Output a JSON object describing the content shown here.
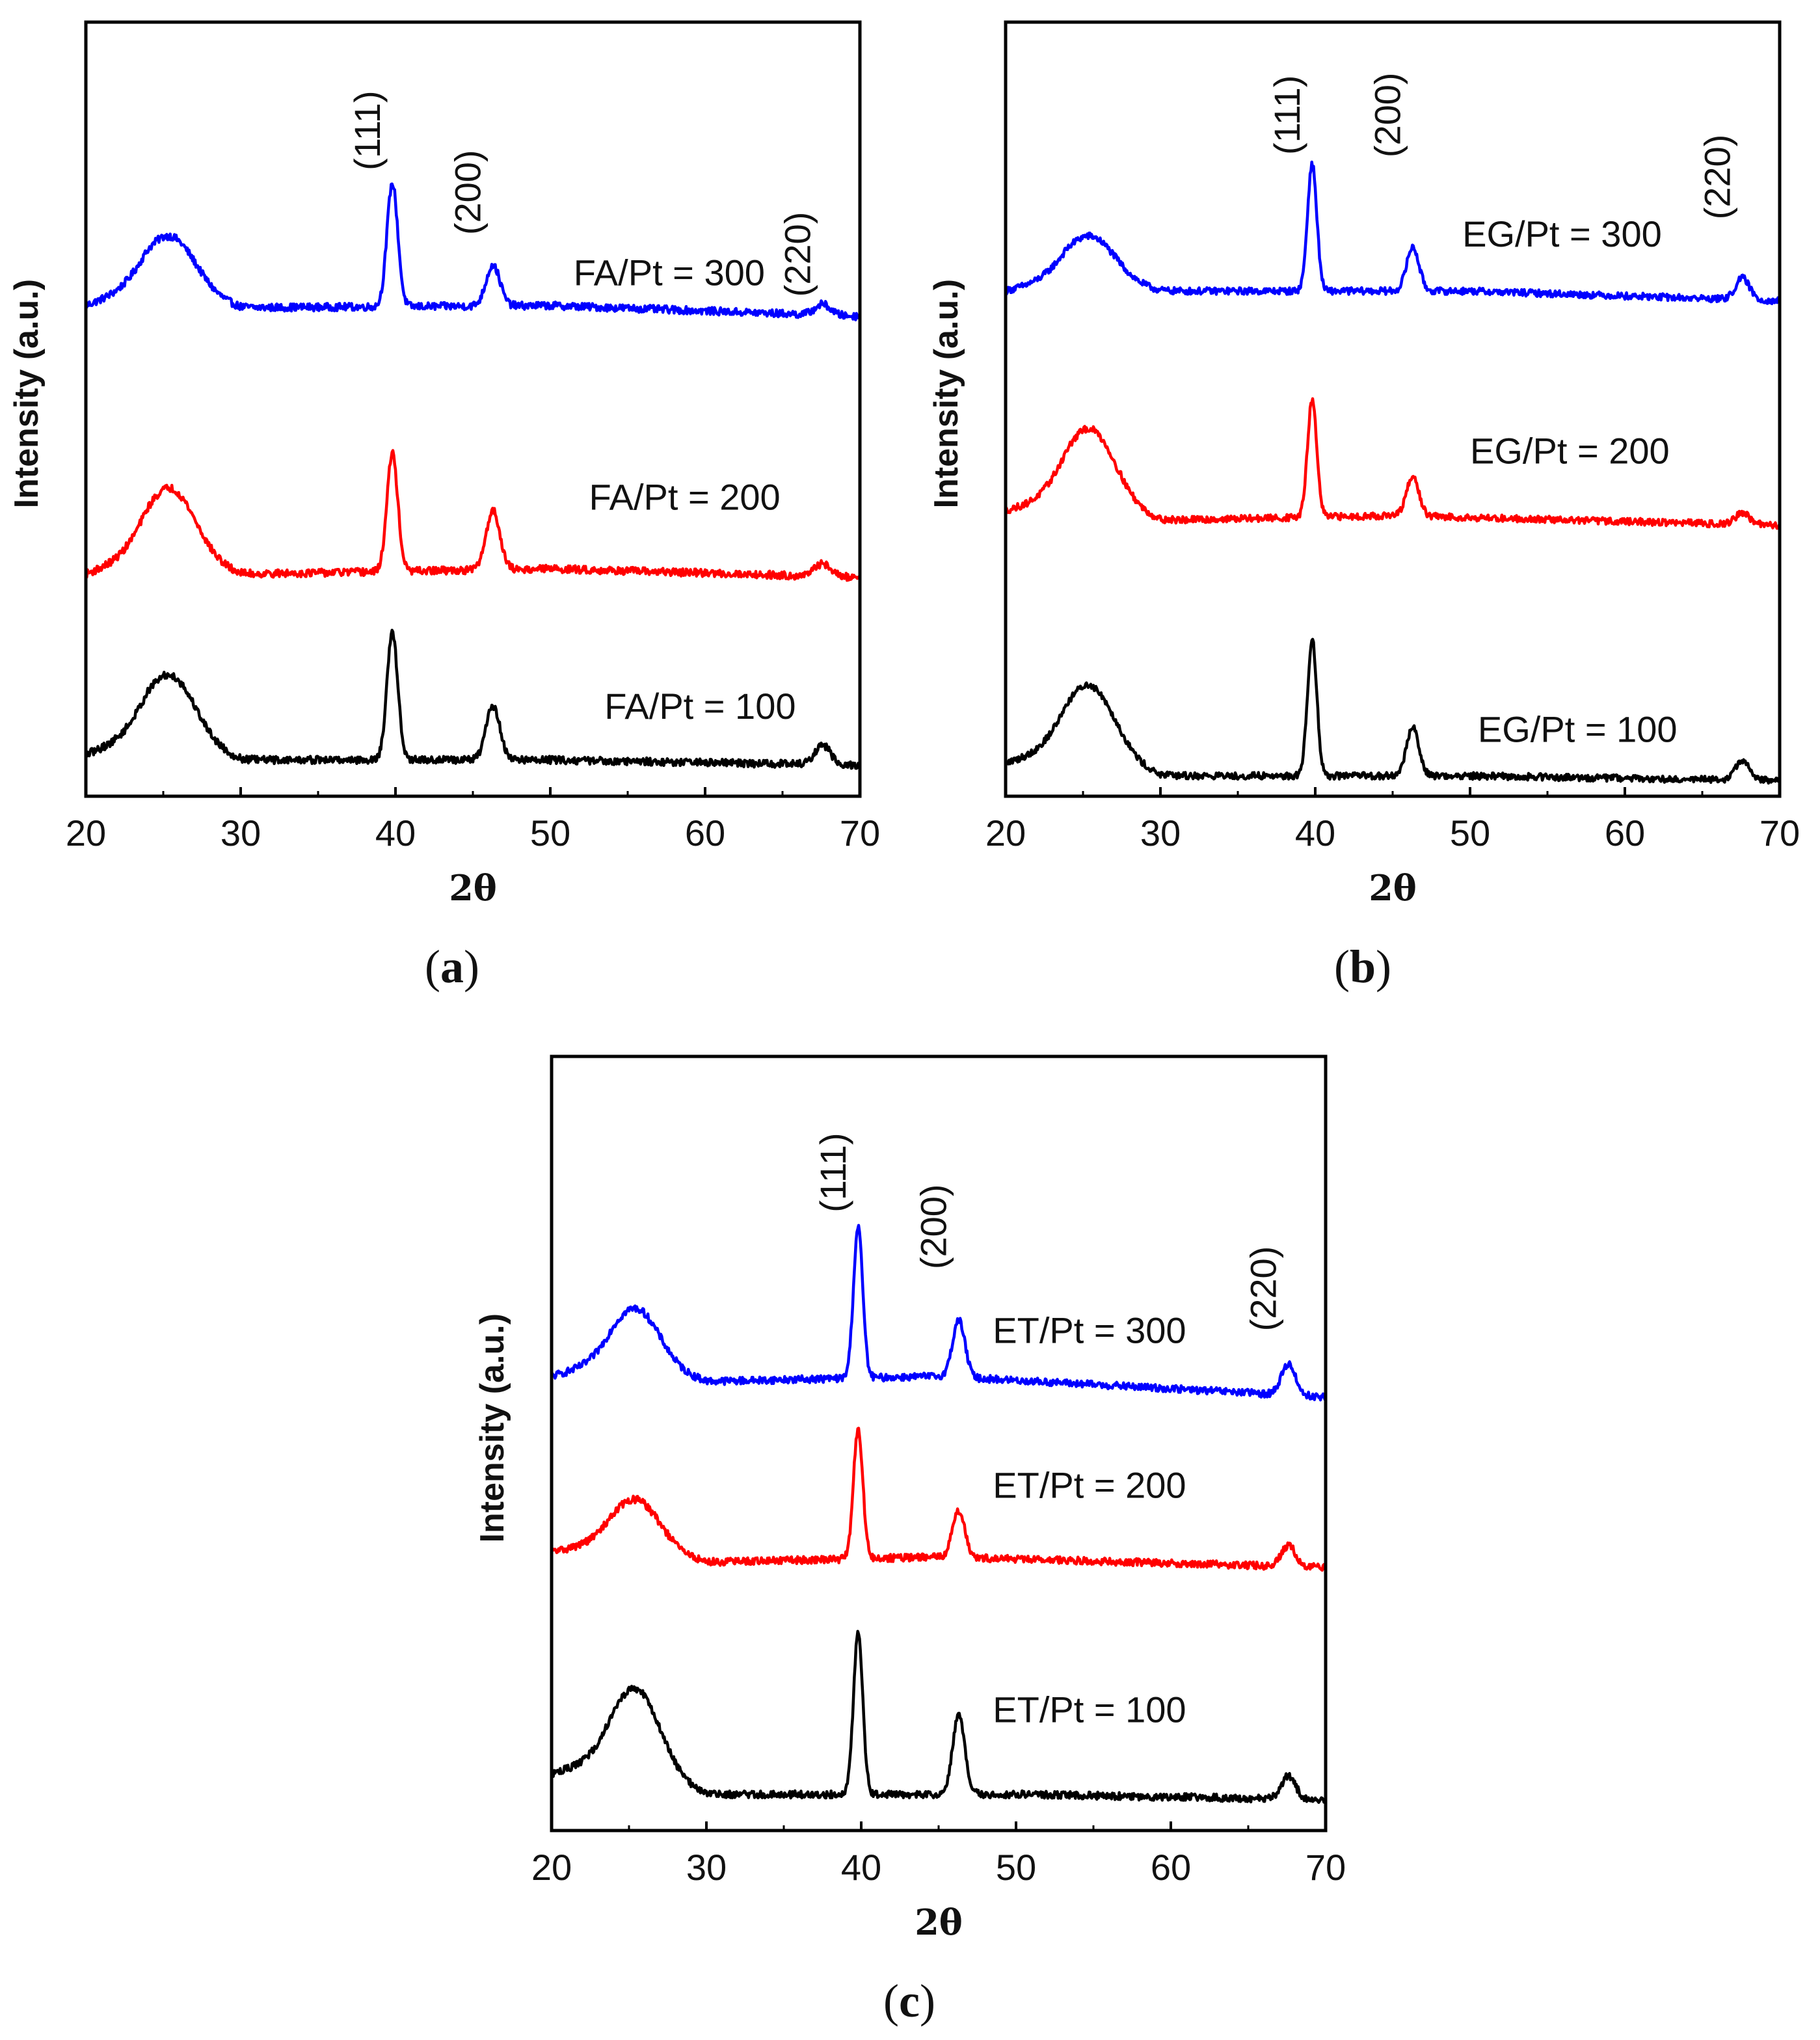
{
  "chart_data": [
    {
      "panel": "a",
      "type": "line",
      "caption_letter": "a",
      "xlabel": "2θ",
      "ylabel": "Intensity (a.u.)",
      "xlim": [
        20,
        70
      ],
      "xticks": [
        "20",
        "30",
        "40",
        "50",
        "60",
        "70"
      ],
      "peak_labels": [
        {
          "text": "(111)",
          "x": 39.8
        },
        {
          "text": "(200)",
          "x": 46.3
        },
        {
          "text": "(220)",
          "x": 67.6
        }
      ],
      "series": [
        {
          "name": "FA/Pt = 300",
          "color": "#0000ff",
          "offset": 2.0,
          "baseline": [
            [
              20,
              0.1
            ],
            [
              24,
              0.3
            ],
            [
              30,
              0.08
            ],
            [
              50,
              0.1
            ],
            [
              70,
              0.0
            ]
          ],
          "peaks": [
            [
              25.5,
              0.5,
              1.6
            ],
            [
              39.8,
              1.15,
              0.35
            ],
            [
              46.3,
              0.38,
              0.45
            ],
            [
              67.6,
              0.1,
              0.5
            ]
          ]
        },
        {
          "name": "FA/Pt = 200",
          "color": "#ff0000",
          "offset": 1.0,
          "baseline": [
            [
              20,
              0.05
            ],
            [
              24,
              0.25
            ],
            [
              30,
              0.05
            ],
            [
              50,
              0.1
            ],
            [
              70,
              0.02
            ]
          ],
          "peaks": [
            [
              25.5,
              0.65,
              1.6
            ],
            [
              39.8,
              1.1,
              0.35
            ],
            [
              46.3,
              0.55,
              0.45
            ],
            [
              67.6,
              0.12,
              0.5
            ]
          ]
        },
        {
          "name": "FA/Pt = 100",
          "color": "#000000",
          "offset": 0.0,
          "baseline": [
            [
              20,
              0.1
            ],
            [
              24,
              0.3
            ],
            [
              30,
              0.05
            ],
            [
              50,
              0.05
            ],
            [
              70,
              0.0
            ]
          ],
          "peaks": [
            [
              25.5,
              0.6,
              1.6
            ],
            [
              39.8,
              1.18,
              0.35
            ],
            [
              46.3,
              0.5,
              0.45
            ],
            [
              67.6,
              0.18,
              0.5
            ]
          ]
        }
      ]
    },
    {
      "panel": "b",
      "type": "line",
      "caption_letter": "b",
      "xlabel": "2θ",
      "ylabel": "Intensity (a.u.)",
      "xlim": [
        20,
        70
      ],
      "xticks": [
        "20",
        "30",
        "40",
        "50",
        "60",
        "70"
      ],
      "peak_labels": [
        {
          "text": "(111)",
          "x": 39.8
        },
        {
          "text": "(200)",
          "x": 46.3
        },
        {
          "text": "(220)",
          "x": 67.6
        }
      ],
      "series": [
        {
          "name": "EG/Pt = 300",
          "color": "#0000ff",
          "offset": 2.0,
          "baseline": [
            [
              20,
              0.1
            ],
            [
              24,
              0.25
            ],
            [
              30,
              0.1
            ],
            [
              50,
              0.1
            ],
            [
              70,
              0.0
            ]
          ],
          "peaks": [
            [
              25.5,
              0.45,
              1.6
            ],
            [
              39.8,
              1.3,
              0.3
            ],
            [
              46.3,
              0.45,
              0.4
            ],
            [
              67.6,
              0.22,
              0.45
            ]
          ]
        },
        {
          "name": "EG/Pt = 200",
          "color": "#ff0000",
          "offset": 1.0,
          "baseline": [
            [
              20,
              0.15
            ],
            [
              24,
              0.3
            ],
            [
              30,
              0.05
            ],
            [
              45,
              0.1
            ],
            [
              70,
              0.0
            ]
          ],
          "peaks": [
            [
              25.5,
              0.75,
              1.6
            ],
            [
              39.8,
              1.2,
              0.3
            ],
            [
              46.3,
              0.4,
              0.4
            ],
            [
              67.6,
              0.12,
              0.45
            ]
          ]
        },
        {
          "name": "EG/Pt = 100",
          "color": "#000000",
          "offset": 0.0,
          "baseline": [
            [
              20,
              0.18
            ],
            [
              24,
              0.35
            ],
            [
              30,
              0.05
            ],
            [
              50,
              0.05
            ],
            [
              70,
              0.0
            ]
          ],
          "peaks": [
            [
              25.5,
              0.7,
              1.6
            ],
            [
              39.8,
              1.4,
              0.3
            ],
            [
              46.3,
              0.5,
              0.4
            ],
            [
              67.6,
              0.2,
              0.45
            ]
          ]
        }
      ]
    },
    {
      "panel": "c",
      "type": "line",
      "caption_letter": "c",
      "xlabel": "2θ",
      "ylabel": "Intensity (a.u.)",
      "xlim": [
        20,
        70
      ],
      "xticks": [
        "20",
        "30",
        "40",
        "50",
        "60",
        "70"
      ],
      "peak_labels": [
        {
          "text": "(111)",
          "x": 39.8
        },
        {
          "text": "(200)",
          "x": 46.3
        },
        {
          "text": "(220)",
          "x": 67.6
        }
      ],
      "series": [
        {
          "name": "ET/Pt = 300",
          "color": "#0000ff",
          "offset": 2.0,
          "baseline": [
            [
              20,
              0.2
            ],
            [
              24,
              0.35
            ],
            [
              30,
              0.15
            ],
            [
              45,
              0.2
            ],
            [
              70,
              0.0
            ]
          ],
          "peaks": [
            [
              25.5,
              0.55,
              1.5
            ],
            [
              39.8,
              1.45,
              0.3
            ],
            [
              46.3,
              0.55,
              0.4
            ],
            [
              67.6,
              0.3,
              0.45
            ]
          ]
        },
        {
          "name": "ET/Pt = 200",
          "color": "#ff0000",
          "offset": 1.0,
          "baseline": [
            [
              20,
              0.15
            ],
            [
              24,
              0.25
            ],
            [
              30,
              0.05
            ],
            [
              45,
              0.1
            ],
            [
              70,
              0.0
            ]
          ],
          "peaks": [
            [
              25.5,
              0.45,
              1.5
            ],
            [
              39.8,
              1.25,
              0.3
            ],
            [
              46.3,
              0.45,
              0.4
            ],
            [
              67.6,
              0.2,
              0.45
            ]
          ]
        },
        {
          "name": "ET/Pt = 100",
          "color": "#000000",
          "offset": 0.0,
          "baseline": [
            [
              20,
              0.25
            ],
            [
              24,
              0.4
            ],
            [
              30,
              0.05
            ],
            [
              50,
              0.05
            ],
            [
              70,
              0.0
            ]
          ],
          "peaks": [
            [
              25.5,
              0.75,
              1.5
            ],
            [
              39.8,
              1.55,
              0.3
            ],
            [
              46.3,
              0.75,
              0.4
            ],
            [
              67.6,
              0.22,
              0.45
            ]
          ]
        }
      ]
    }
  ]
}
